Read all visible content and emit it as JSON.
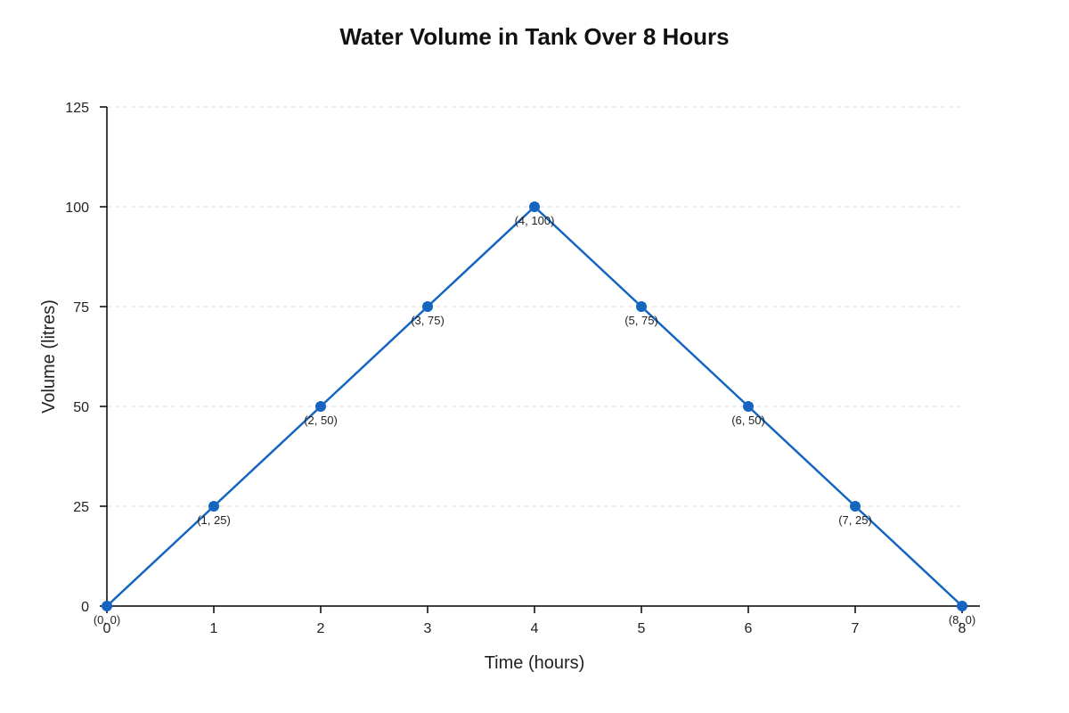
{
  "chart_data": {
    "type": "line",
    "title": "Water Volume in Tank Over 8 Hours",
    "xlabel": "Time (hours)",
    "ylabel": "Volume (litres)",
    "xlim": [
      0,
      8
    ],
    "ylim": [
      0,
      125
    ],
    "x_ticks": [
      0,
      1,
      2,
      3,
      4,
      5,
      6,
      7,
      8
    ],
    "y_ticks": [
      0,
      25,
      50,
      75,
      100,
      125
    ],
    "grid": "horizontal-dashed",
    "line_color": "#1565c0",
    "series": [
      {
        "x": [
          0,
          1,
          2,
          3,
          4,
          5,
          6,
          7,
          8
        ],
        "values": [
          0,
          25,
          50,
          75,
          100,
          75,
          50,
          25,
          0
        ]
      }
    ],
    "point_labels": [
      "(0, 0)",
      "(1, 25)",
      "(2, 50)",
      "(3, 75)",
      "(4, 100)",
      "(5, 75)",
      "(6, 50)",
      "(7, 25)",
      "(8, 0)"
    ]
  }
}
